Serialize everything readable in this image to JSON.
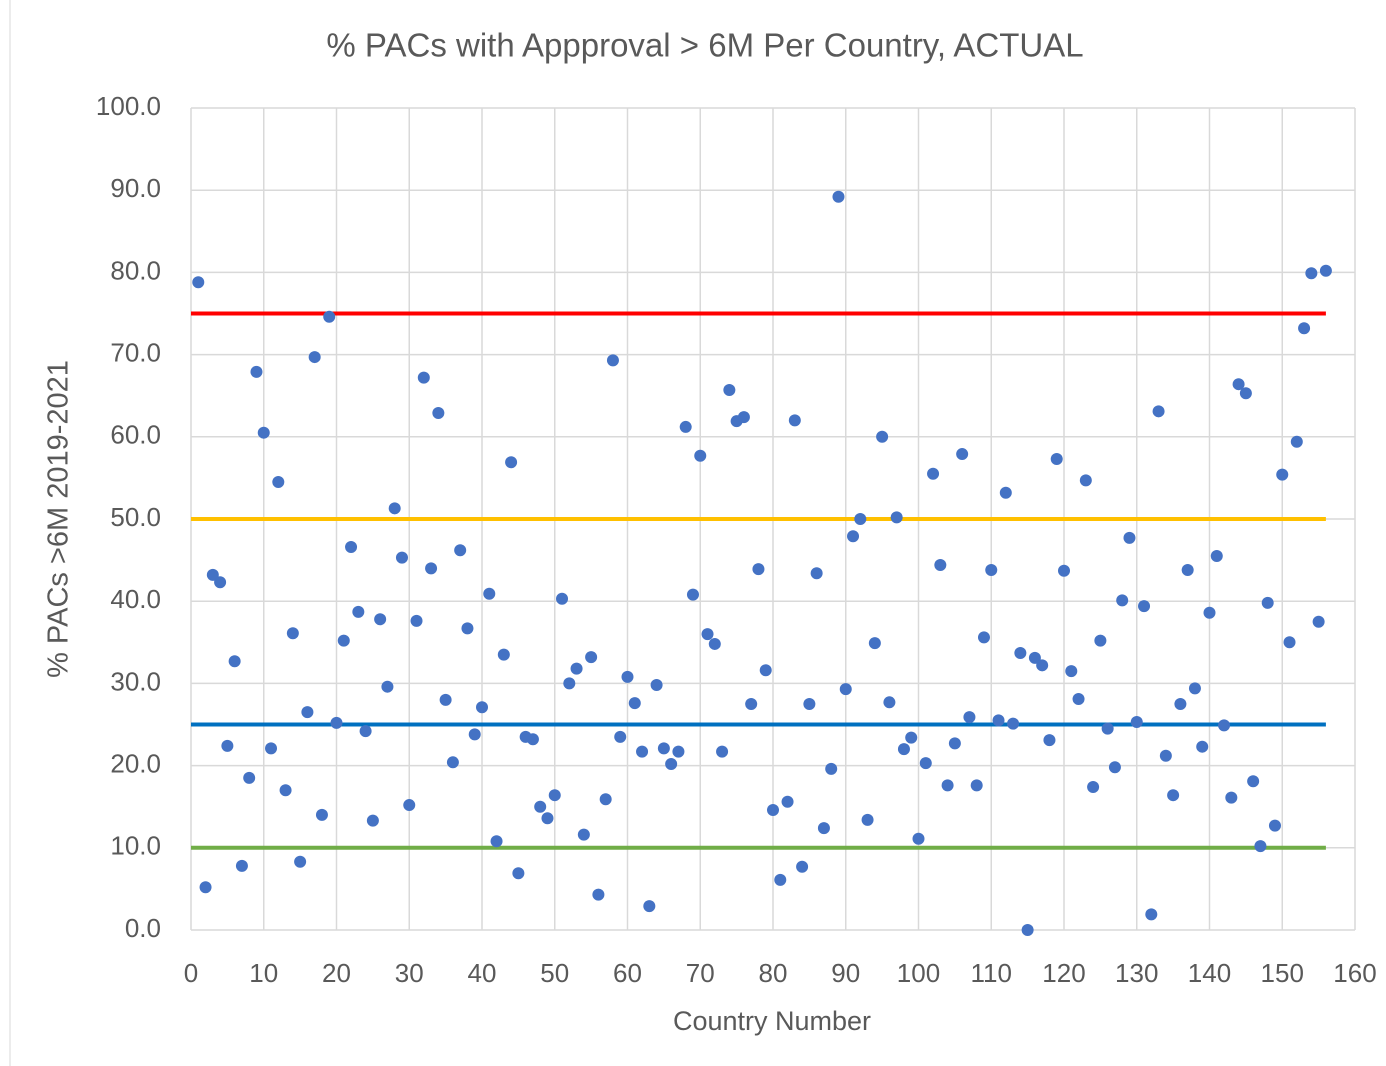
{
  "chart_data": {
    "type": "scatter",
    "title": "% PACs with Appproval > 6M Per Country, ACTUAL",
    "x_label": "Country Number",
    "y_label": "% PACs >6M 2019-2021",
    "color": "#4472c4",
    "x": [
      1,
      2,
      3,
      4,
      5,
      6,
      7,
      8,
      9,
      10,
      11,
      12,
      13,
      14,
      15,
      16,
      17,
      18,
      19,
      20,
      21,
      22,
      23,
      24,
      25,
      26,
      27,
      28,
      29,
      30,
      31,
      32,
      33,
      34,
      35,
      36,
      37,
      38,
      39,
      40,
      41,
      42,
      43,
      44,
      45,
      46,
      47,
      48,
      49,
      50,
      51,
      52,
      53,
      54,
      55,
      56,
      57,
      58,
      59,
      60,
      61,
      62,
      63,
      64,
      65,
      66,
      67,
      68,
      69,
      70,
      71,
      72,
      73,
      74,
      75,
      76,
      77,
      78,
      79,
      80,
      81,
      82,
      83,
      84,
      85,
      86,
      87,
      88,
      89,
      90,
      91,
      92,
      93,
      94,
      95,
      96,
      97,
      98,
      99,
      100,
      101,
      102,
      103,
      104,
      105,
      106,
      107,
      108,
      109,
      110,
      111,
      112,
      113,
      114,
      115,
      116,
      117,
      118,
      119,
      120,
      121,
      122,
      123,
      124,
      125,
      126,
      127,
      128,
      129,
      130,
      131,
      132,
      133,
      134,
      135,
      136,
      137,
      138,
      139,
      140,
      141,
      142,
      143,
      144,
      145,
      146,
      147,
      148,
      149,
      150,
      151,
      152,
      153,
      154,
      155,
      156
    ],
    "values": [
      78.8,
      5.2,
      43.2,
      42.3,
      22.4,
      32.7,
      7.8,
      18.5,
      67.9,
      60.5,
      22.1,
      54.5,
      17.0,
      36.1,
      8.3,
      26.5,
      69.7,
      14.0,
      74.6,
      25.2,
      35.2,
      46.6,
      38.7,
      24.2,
      13.3,
      37.8,
      29.6,
      51.3,
      45.3,
      15.2,
      37.6,
      67.2,
      44.0,
      62.9,
      28.0,
      20.4,
      46.2,
      36.7,
      23.8,
      27.1,
      40.9,
      10.8,
      33.5,
      56.9,
      6.9,
      23.5,
      23.2,
      15.0,
      13.6,
      16.4,
      40.3,
      30.0,
      31.8,
      11.6,
      33.2,
      4.3,
      15.9,
      69.3,
      23.5,
      30.8,
      27.6,
      21.7,
      2.9,
      29.8,
      22.1,
      20.2,
      21.7,
      61.2,
      40.8,
      57.7,
      36.0,
      34.8,
      21.7,
      65.7,
      61.9,
      62.4,
      27.5,
      43.9,
      31.6,
      14.6,
      6.1,
      15.6,
      62.0,
      7.7,
      27.5,
      43.4,
      12.4,
      19.6,
      89.2,
      29.3,
      47.9,
      50.0,
      13.4,
      34.9,
      60.0,
      27.7,
      50.2,
      22.0,
      23.4,
      11.1,
      20.3,
      55.5,
      44.4,
      17.6,
      22.7,
      57.9,
      25.9,
      17.6,
      35.6,
      43.8,
      25.5,
      53.2,
      25.1,
      33.7,
      0.0,
      33.1,
      32.2,
      23.1,
      57.3,
      43.7,
      31.5,
      28.1,
      54.7,
      17.4,
      35.2,
      24.5,
      19.8,
      40.1,
      47.7,
      25.3,
      39.4,
      1.9,
      63.1,
      21.2,
      16.4,
      27.5,
      43.8,
      29.4,
      22.3,
      38.6,
      45.5,
      24.9,
      16.1,
      66.4,
      65.3,
      18.1,
      10.2,
      39.8,
      12.7,
      55.4,
      35.0,
      59.4,
      73.2,
      79.9,
      37.5,
      80.2
    ],
    "hlines": [
      {
        "y": 75,
        "x": [
          0,
          156
        ],
        "color": "#ff0000"
      },
      {
        "y": 50,
        "x": [
          0,
          156
        ],
        "color": "#ffc000"
      },
      {
        "y": 25,
        "x": [
          0,
          156
        ],
        "color": "#0070c0"
      },
      {
        "y": 10,
        "x": [
          0,
          156
        ],
        "color": "#70ad47"
      }
    ],
    "xlim": [
      0,
      160
    ],
    "xticks": [
      0,
      10,
      20,
      30,
      40,
      50,
      60,
      70,
      80,
      90,
      100,
      110,
      120,
      130,
      140,
      150,
      160
    ],
    "ylim": [
      0,
      100
    ],
    "yticks": [
      {
        "value": 0,
        "label": "0.0"
      },
      {
        "value": 10,
        "label": "10.0"
      },
      {
        "value": 20,
        "label": "20.0"
      },
      {
        "value": 30,
        "label": "30.0"
      },
      {
        "value": 40,
        "label": "40.0"
      },
      {
        "value": 50,
        "label": "50.0"
      },
      {
        "value": 60,
        "label": "60.0"
      },
      {
        "value": 70,
        "label": "70.0"
      },
      {
        "value": 80,
        "label": "80.0"
      },
      {
        "value": 90,
        "label": "90.0"
      },
      {
        "value": 100,
        "label": "100.0"
      }
    ],
    "grid": true
  }
}
